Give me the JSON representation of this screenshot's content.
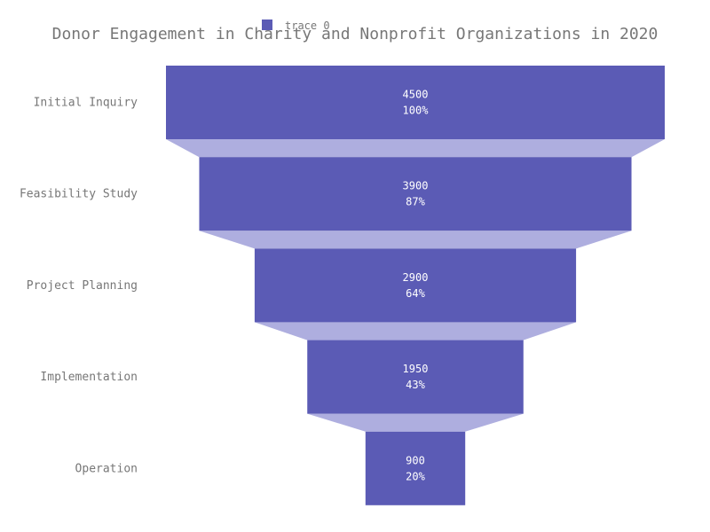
{
  "chart_data": {
    "type": "funnel",
    "title": "Donor Engagement in Charity and Nonprofit Organizations in 2020",
    "categories": [
      "Initial Inquiry",
      "Feasibility Study",
      "Project Planning",
      "Implementation",
      "Operation"
    ],
    "series": [
      {
        "name": "trace 0",
        "values": [
          4500,
          3900,
          2900,
          1950,
          900
        ],
        "percent_labels": [
          "100%",
          "87%",
          "64%",
          "43%",
          "20%"
        ]
      }
    ],
    "legend_position": "top",
    "grid": false,
    "colors": {
      "bar": "#5b5bb5",
      "connector": "#aeaedf",
      "text": "#777777",
      "label": "#ffffff"
    }
  }
}
